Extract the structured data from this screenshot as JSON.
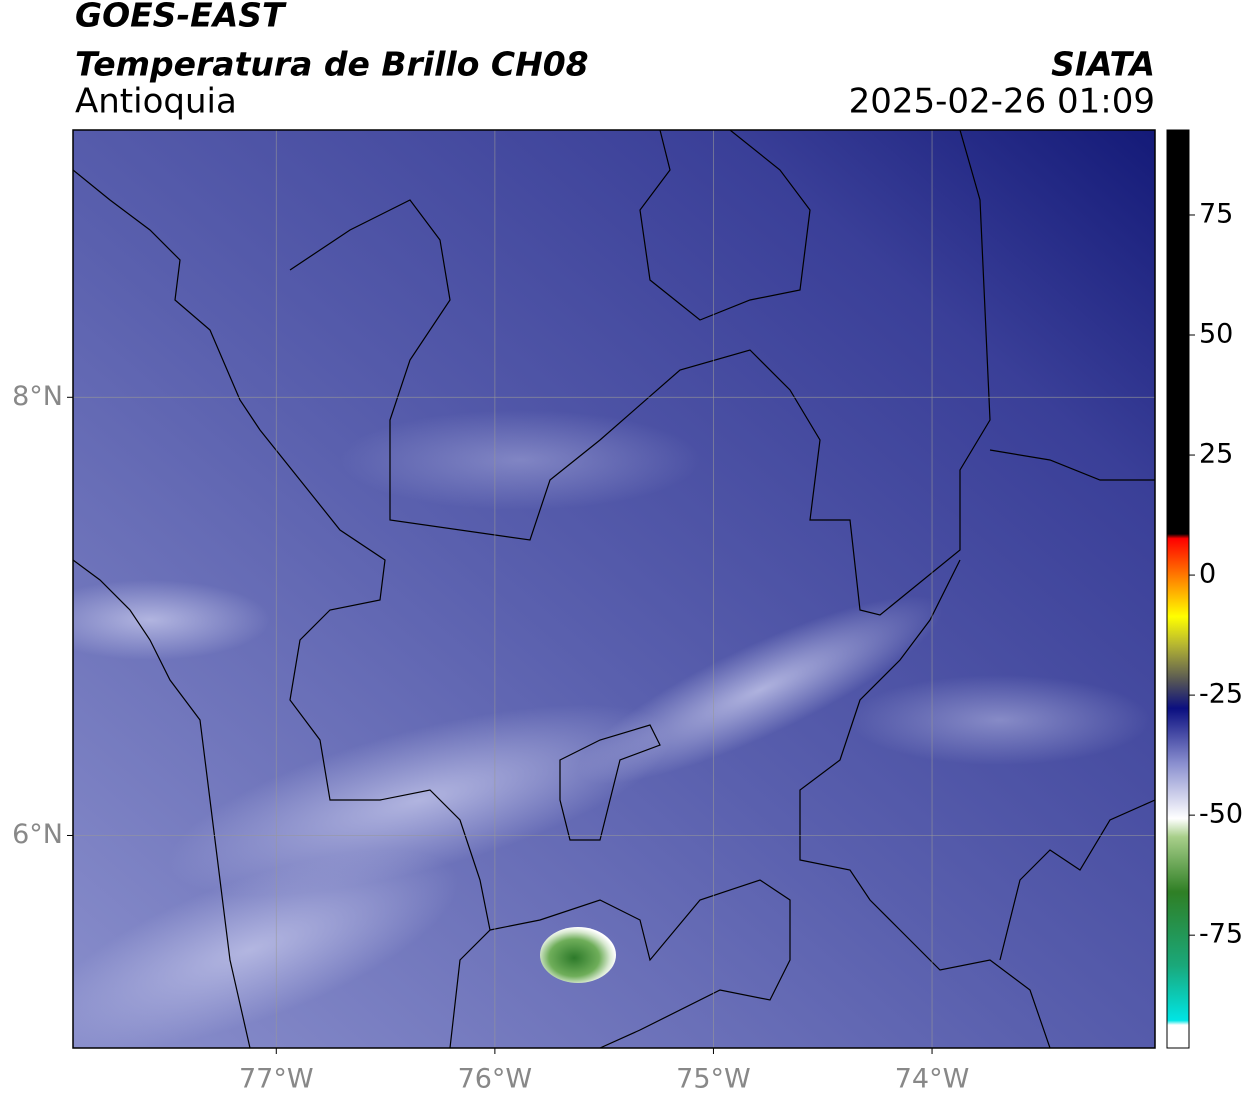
{
  "chart_data": {
    "type": "map",
    "title": "GOES-EAST",
    "subtitle": "Temperatura de Brillo CH08",
    "region": "Antioquia",
    "source": "SIATA",
    "datetime": "2025-02-26 01:09",
    "xlim": [
      -77.93,
      -72.98
    ],
    "ylim": [
      5.03,
      9.22
    ],
    "xticks": [
      {
        "value": -77,
        "label": "77°W"
      },
      {
        "value": -76,
        "label": "76°W"
      },
      {
        "value": -75,
        "label": "75°W"
      },
      {
        "value": -74,
        "label": "74°W"
      }
    ],
    "yticks": [
      {
        "value": 6,
        "label": "6°N"
      },
      {
        "value": 8,
        "label": "8°N"
      }
    ],
    "grid": true,
    "colorbar": {
      "lim": [
        -98.5,
        92.7
      ],
      "ticks": [
        -75,
        -50,
        -25,
        0,
        25,
        50,
        75
      ]
    }
  }
}
